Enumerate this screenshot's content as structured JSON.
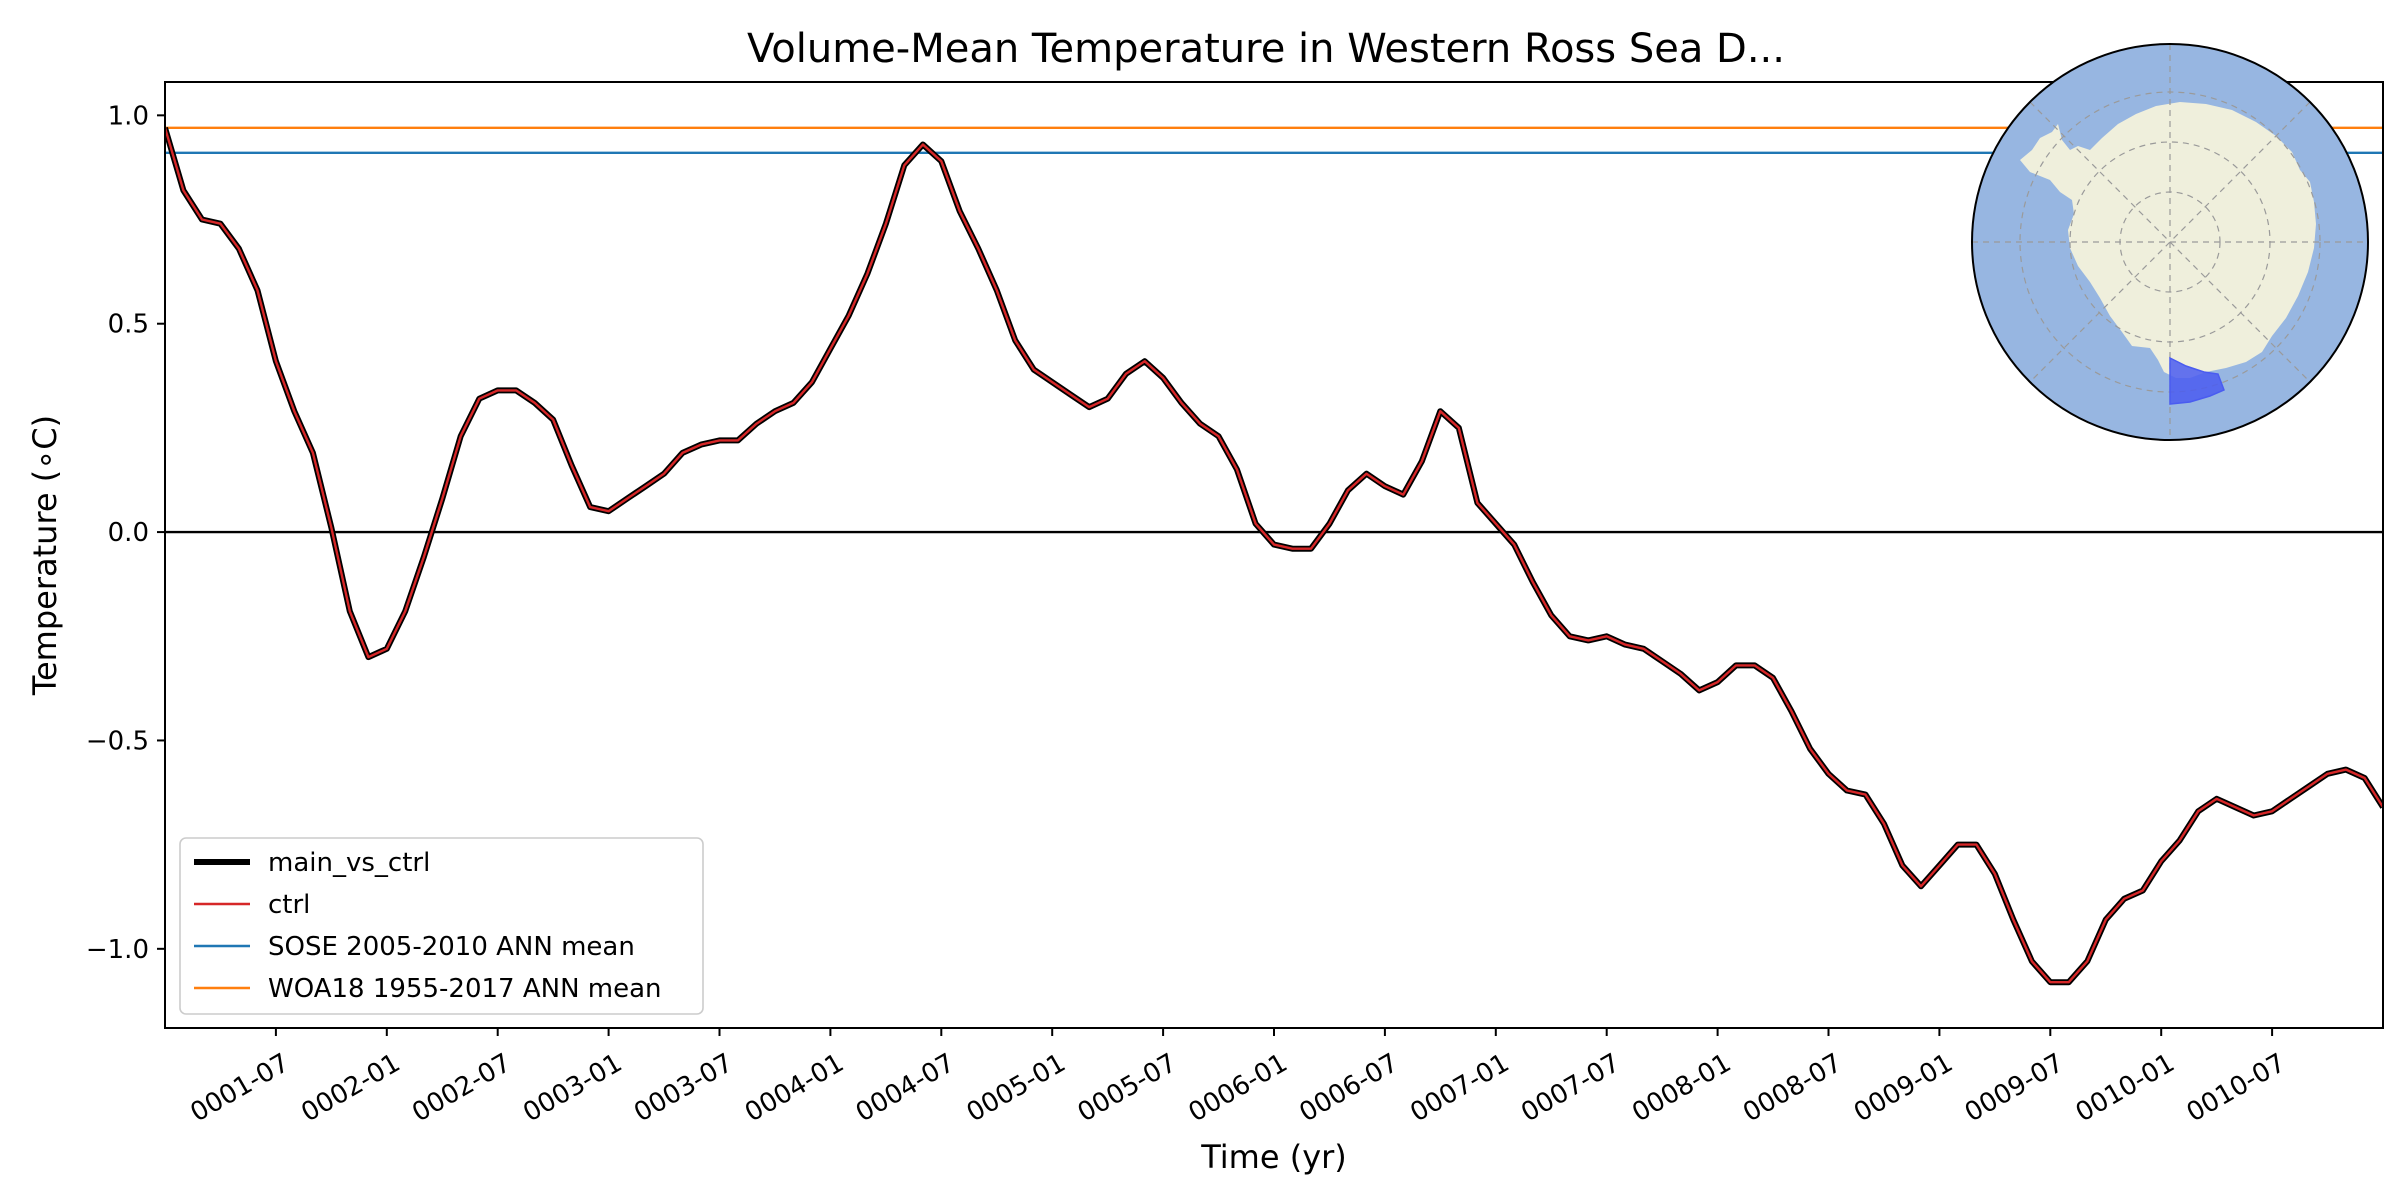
{
  "chart_data": {
    "type": "line",
    "title": "Volume-Mean Temperature in Western Ross Sea D...",
    "xlabel": "Time (yr)",
    "ylabel": "Temperature ($^\\circ$C)",
    "ylabel_display": "Temperature (∘C)",
    "xlim": [
      1.0,
      11.0
    ],
    "ylim": [
      -1.19,
      1.08
    ],
    "grid": false,
    "y_ticks": [
      {
        "value": 1.0,
        "label": "1.0"
      },
      {
        "value": 0.5,
        "label": "0.5"
      },
      {
        "value": 0.0,
        "label": "0.0"
      },
      {
        "value": -0.5,
        "label": "−0.5"
      },
      {
        "value": -1.0,
        "label": "−1.0"
      }
    ],
    "x_ticks": [
      {
        "value": 1.5,
        "label": "0001-07"
      },
      {
        "value": 2.0,
        "label": "0002-01"
      },
      {
        "value": 2.5,
        "label": "0002-07"
      },
      {
        "value": 3.0,
        "label": "0003-01"
      },
      {
        "value": 3.5,
        "label": "0003-07"
      },
      {
        "value": 4.0,
        "label": "0004-01"
      },
      {
        "value": 4.5,
        "label": "0004-07"
      },
      {
        "value": 5.0,
        "label": "0005-01"
      },
      {
        "value": 5.5,
        "label": "0005-07"
      },
      {
        "value": 6.0,
        "label": "0006-01"
      },
      {
        "value": 6.5,
        "label": "0006-07"
      },
      {
        "value": 7.0,
        "label": "0007-01"
      },
      {
        "value": 7.5,
        "label": "0007-07"
      },
      {
        "value": 8.0,
        "label": "0008-01"
      },
      {
        "value": 8.5,
        "label": "0008-07"
      },
      {
        "value": 9.0,
        "label": "0009-01"
      },
      {
        "value": 9.5,
        "label": "0009-07"
      },
      {
        "value": 10.0,
        "label": "0010-01"
      },
      {
        "value": 10.5,
        "label": "0010-07"
      }
    ],
    "reference_lines": [
      {
        "name": "zero",
        "value": 0.0,
        "color": "#000000"
      },
      {
        "name": "SOSE 2005-2010 ANN mean",
        "value": 0.91,
        "color": "#1f77b4"
      },
      {
        "name": "WOA18 1955-2017 ANN mean",
        "value": 0.97,
        "color": "#ff7f0e"
      }
    ],
    "series": [
      {
        "name": "main_vs_ctrl",
        "color": "#000000",
        "x": [
          1.0,
          1.083,
          1.167,
          1.25,
          1.333,
          1.417,
          1.5,
          1.583,
          1.667,
          1.75,
          1.833,
          1.917,
          2.0,
          2.083,
          2.167,
          2.25,
          2.333,
          2.417,
          2.5,
          2.583,
          2.667,
          2.75,
          2.833,
          2.917,
          3.0,
          3.083,
          3.167,
          3.25,
          3.333,
          3.417,
          3.5,
          3.583,
          3.667,
          3.75,
          3.833,
          3.917,
          4.0,
          4.083,
          4.167,
          4.25,
          4.333,
          4.417,
          4.5,
          4.583,
          4.667,
          4.75,
          4.833,
          4.917,
          5.0,
          5.083,
          5.167,
          5.25,
          5.333,
          5.417,
          5.5,
          5.583,
          5.667,
          5.75,
          5.833,
          5.917,
          6.0,
          6.083,
          6.167,
          6.25,
          6.333,
          6.417,
          6.5,
          6.583,
          6.667,
          6.75,
          6.833,
          6.917,
          7.0,
          7.083,
          7.167,
          7.25,
          7.333,
          7.417,
          7.5,
          7.583,
          7.667,
          7.75,
          7.833,
          7.917,
          8.0,
          8.083,
          8.167,
          8.25,
          8.333,
          8.417,
          8.5,
          8.583,
          8.667,
          8.75,
          8.833,
          8.917,
          9.0,
          9.083,
          9.167,
          9.25,
          9.333,
          9.417,
          9.5,
          9.583,
          9.667,
          9.75,
          9.833,
          9.917,
          10.0,
          10.083,
          10.167,
          10.25,
          10.333,
          10.417,
          10.5,
          10.583,
          10.667,
          10.75,
          10.833,
          10.917,
          11.0
        ],
        "y": [
          0.97,
          0.82,
          0.75,
          0.74,
          0.68,
          0.58,
          0.41,
          0.29,
          0.19,
          0.01,
          -0.19,
          -0.3,
          -0.28,
          -0.19,
          -0.06,
          0.08,
          0.23,
          0.32,
          0.34,
          0.34,
          0.31,
          0.27,
          0.16,
          0.06,
          0.05,
          0.08,
          0.11,
          0.14,
          0.19,
          0.21,
          0.22,
          0.22,
          0.26,
          0.29,
          0.31,
          0.36,
          0.44,
          0.52,
          0.62,
          0.74,
          0.88,
          0.93,
          0.89,
          0.77,
          0.68,
          0.58,
          0.46,
          0.39,
          0.36,
          0.33,
          0.3,
          0.32,
          0.38,
          0.41,
          0.37,
          0.31,
          0.26,
          0.23,
          0.15,
          0.02,
          -0.03,
          -0.04,
          -0.04,
          0.02,
          0.1,
          0.14,
          0.11,
          0.09,
          0.17,
          0.29,
          0.25,
          0.07,
          0.02,
          -0.03,
          -0.12,
          -0.2,
          -0.25,
          -0.26,
          -0.25,
          -0.27,
          -0.28,
          -0.31,
          -0.34,
          -0.38,
          -0.36,
          -0.32,
          -0.32,
          -0.35,
          -0.43,
          -0.52,
          -0.58,
          -0.62,
          -0.63,
          -0.7,
          -0.8,
          -0.85,
          -0.8,
          -0.75,
          -0.75,
          -0.82,
          -0.93,
          -1.03,
          -1.08,
          -1.08,
          -1.03,
          -0.93,
          -0.88,
          -0.86,
          -0.79,
          -0.74,
          -0.67,
          -0.64,
          -0.66,
          -0.68,
          -0.67,
          -0.64,
          -0.61,
          -0.58,
          -0.57,
          -0.59,
          -0.66
        ]
      },
      {
        "name": "ctrl",
        "color": "#d62728",
        "same_as": "main_vs_ctrl"
      }
    ],
    "legend": {
      "placement": "lower-left",
      "entries": [
        {
          "label": "main_vs_ctrl",
          "color": "#000000",
          "thick": true
        },
        {
          "label": "ctrl",
          "color": "#d62728",
          "thick": false
        },
        {
          "label": "SOSE 2005-2010 ANN mean",
          "color": "#1f77b4",
          "thick": false
        },
        {
          "label": "WOA18 1955-2017 ANN mean",
          "color": "#ff7f0e",
          "thick": false
        }
      ]
    },
    "inset_map": {
      "type": "south-polar-stereographic",
      "placement": "top-right",
      "ocean_color": "#97b6e1",
      "land_color": "#efefdc",
      "region_color": "#4a5cf0",
      "region": "Western Ross Sea"
    }
  }
}
